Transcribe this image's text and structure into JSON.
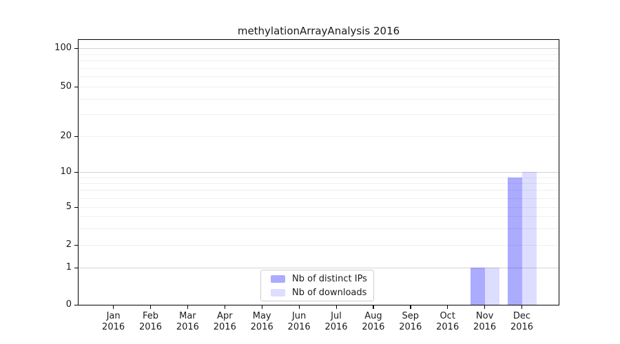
{
  "title": "methylationArrayAnalysis 2016",
  "chart_data": {
    "type": "bar",
    "title": "methylationArrayAnalysis 2016",
    "x_categories": [
      "Jan",
      "Feb",
      "Mar",
      "Apr",
      "May",
      "Jun",
      "Jul",
      "Aug",
      "Sep",
      "Oct",
      "Nov",
      "Dec"
    ],
    "x_year": "2016",
    "series": [
      {
        "name": "Nb of distinct IPs",
        "color": "rgba(0,0,255,0.33)",
        "color_hex": "#ababff",
        "values": [
          0,
          0,
          0,
          0,
          0,
          0,
          0,
          0,
          0,
          0,
          1,
          9
        ]
      },
      {
        "name": "Nb of downloads",
        "color": "rgba(0,0,255,0.135)",
        "color_hex": "#dcdcfc",
        "values": [
          0,
          0,
          0,
          0,
          0,
          0,
          0,
          0,
          0,
          0,
          1,
          10
        ]
      }
    ],
    "y_ticks": [
      0,
      1,
      2,
      5,
      10,
      20,
      50,
      100
    ],
    "y_tick_labels": [
      "0",
      "1",
      "2",
      "5",
      "10",
      "20",
      "50",
      "100"
    ],
    "y_minor_grid_values": [
      3,
      4,
      6,
      7,
      8,
      9,
      30,
      40,
      60,
      70,
      80,
      90
    ],
    "y_scale": "log above 1, with 0 pinned at the baseline",
    "ylim": [
      0,
      120
    ],
    "grid": true,
    "legend_position": "inside bottom-center",
    "grid_minor_color": "#efefef",
    "grid_major_color": "#d2d2d2",
    "axis_color": "#000000"
  }
}
